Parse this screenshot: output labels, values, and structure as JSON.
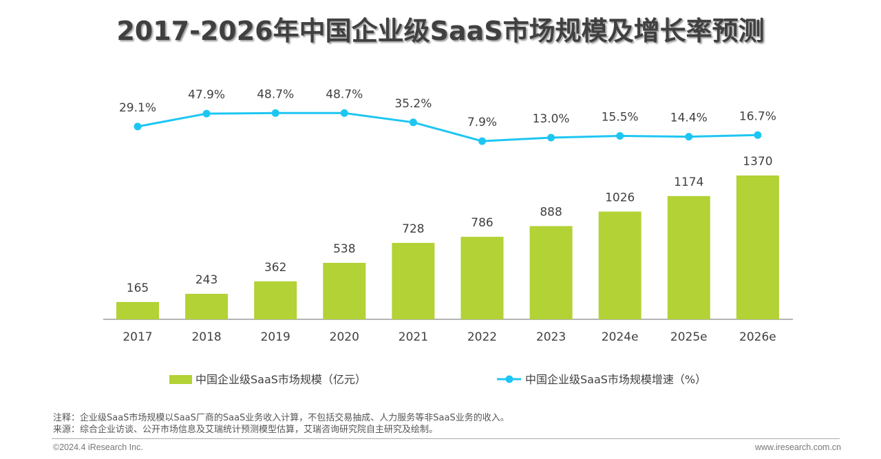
{
  "chart_data": {
    "type": "bar+line",
    "title": "2017-2026年中国企业级SaaS市场规模及增长率预测",
    "categories": [
      "2017",
      "2018",
      "2019",
      "2020",
      "2021",
      "2022",
      "2023",
      "2024e",
      "2025e",
      "2026e"
    ],
    "series": [
      {
        "name": "中国企业级SaaS市场规模（亿元）",
        "type": "bar",
        "color": "#b2d235",
        "values": [
          165,
          243,
          362,
          538,
          728,
          786,
          888,
          1026,
          1174,
          1370
        ],
        "labels": [
          "165",
          "243",
          "362",
          "538",
          "728",
          "786",
          "888",
          "1026",
          "1174",
          "1370"
        ]
      },
      {
        "name": "中国企业级SaaS市场规模增速（%）",
        "type": "line",
        "color": "#1dc6f2",
        "values": [
          29.1,
          47.9,
          48.7,
          48.7,
          35.2,
          7.9,
          13.0,
          15.5,
          14.4,
          16.7
        ],
        "labels": [
          "29.1%",
          "47.9%",
          "48.7%",
          "48.7%",
          "35.2%",
          "7.9%",
          "13.0%",
          "15.5%",
          "14.4%",
          "16.7%"
        ]
      }
    ],
    "grid": false,
    "legend": "bottom"
  },
  "notes": {
    "note": "注释：企业级SaaS市场规模以SaaS厂商的SaaS业务收入计算，不包括交易抽成、人力服务等非SaaS业务的收入。",
    "source": "来源：综合企业访谈、公开市场信息及艾瑞统计预测模型估算，艾瑞咨询研究院自主研究及绘制。"
  },
  "footer": {
    "copyright": "©2024.4 iResearch Inc.",
    "website": "www.iresearch.com.cn"
  }
}
